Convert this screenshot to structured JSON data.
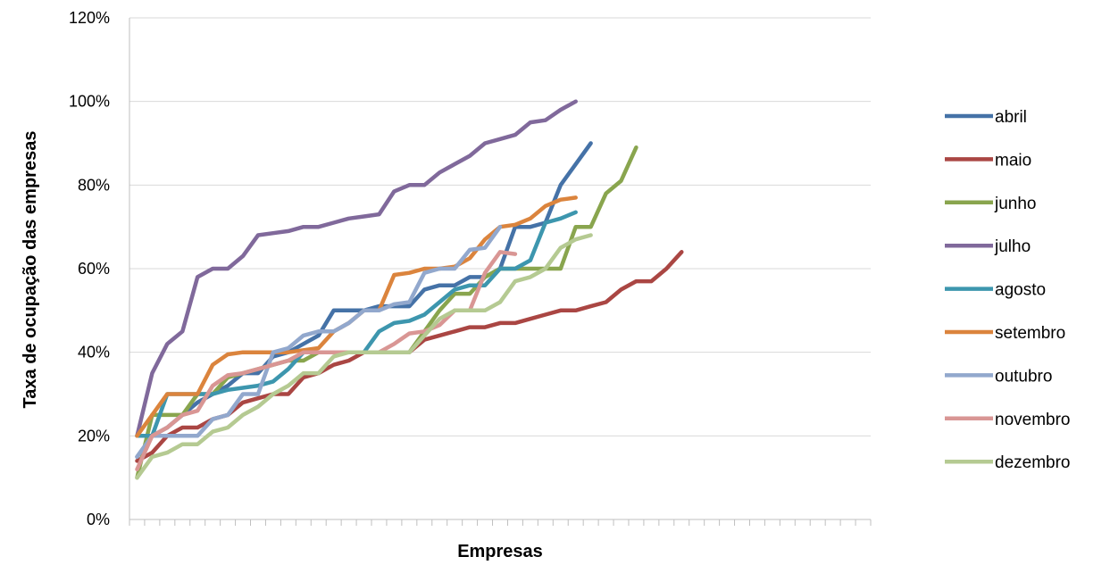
{
  "chart_data": {
    "type": "line",
    "title": "",
    "xlabel": "Empresas",
    "ylabel": "Taxa de ocupação das empresas",
    "ylim": [
      0,
      120
    ],
    "yticks": [
      0,
      20,
      40,
      60,
      80,
      100,
      120
    ],
    "ytick_labels": [
      "0%",
      "20%",
      "40%",
      "60%",
      "80%",
      "100%",
      "120%"
    ],
    "x_count": 49,
    "grid": true,
    "legend_position": "right",
    "series": [
      {
        "name": "abril",
        "color": "#4572a7",
        "values": [
          15,
          20,
          22,
          25,
          28,
          30,
          32,
          35,
          35,
          39,
          40,
          42,
          44,
          50,
          50,
          50,
          51,
          51,
          51,
          55,
          56,
          56,
          58,
          58,
          60,
          70,
          70,
          71,
          80,
          85,
          90
        ]
      },
      {
        "name": "maio",
        "color": "#aa4643",
        "values": [
          14,
          16,
          20,
          22,
          22,
          24,
          25,
          28,
          29,
          30,
          30,
          34,
          35,
          37,
          38,
          40,
          40,
          40,
          40,
          43,
          44,
          45,
          46,
          46,
          47,
          47,
          48,
          49,
          50,
          50,
          51,
          52,
          55,
          57,
          57,
          60,
          64
        ]
      },
      {
        "name": "junho",
        "color": "#89a54e",
        "values": [
          10,
          25,
          25,
          25,
          30,
          30,
          34,
          35,
          36,
          37,
          38,
          38,
          40,
          40,
          40,
          40,
          40,
          40,
          40,
          45,
          50,
          54,
          54,
          58,
          60,
          60,
          60,
          60,
          60,
          70,
          70,
          78,
          81,
          89
        ]
      },
      {
        "name": "julho",
        "color": "#80699b",
        "values": [
          20,
          35,
          42,
          45,
          58,
          60,
          60,
          63,
          68,
          68.5,
          69,
          70,
          70,
          71,
          72,
          72.5,
          73,
          78.5,
          80,
          80,
          83,
          85,
          87,
          90,
          91,
          92,
          95,
          95.5,
          98,
          100
        ]
      },
      {
        "name": "agosto",
        "color": "#3d96ae",
        "values": [
          20,
          20,
          30,
          30,
          30,
          30,
          31,
          31.5,
          32,
          33,
          36,
          40,
          40,
          40,
          40,
          40,
          45,
          47,
          47.5,
          49,
          52,
          55,
          56,
          56,
          60,
          60,
          62,
          71,
          72,
          73.5
        ]
      },
      {
        "name": "setembro",
        "color": "#db843d",
        "values": [
          20,
          25,
          30,
          30,
          30,
          37,
          39.5,
          40,
          40,
          40,
          40,
          40.5,
          41,
          45,
          47,
          50,
          50,
          58.5,
          59,
          60,
          60,
          60.5,
          62.5,
          67,
          70,
          70.5,
          72,
          75,
          76.5,
          77
        ]
      },
      {
        "name": "outubro",
        "color": "#92a8cd",
        "values": [
          15,
          20,
          20,
          20,
          20,
          24,
          25,
          30,
          30,
          40,
          41,
          44,
          45,
          45,
          47,
          50,
          50,
          51.5,
          52,
          59,
          60,
          60,
          64.5,
          65,
          70
        ]
      },
      {
        "name": "novembro",
        "color": "#d99694",
        "values": [
          12,
          20,
          22,
          25,
          26,
          32,
          34.5,
          35,
          36,
          37,
          38,
          40,
          40,
          40,
          40,
          40,
          40,
          42,
          44.5,
          45,
          46.5,
          50,
          50,
          59,
          64,
          63.5
        ]
      },
      {
        "name": "dezembro",
        "color": "#b5ca92",
        "values": [
          10,
          15,
          16,
          18,
          18,
          21,
          22,
          25,
          27,
          30,
          32,
          35,
          35,
          39,
          40,
          40,
          40,
          40,
          40,
          44,
          48,
          50,
          50,
          50,
          52,
          57,
          58,
          60,
          65,
          67,
          68
        ]
      }
    ]
  }
}
